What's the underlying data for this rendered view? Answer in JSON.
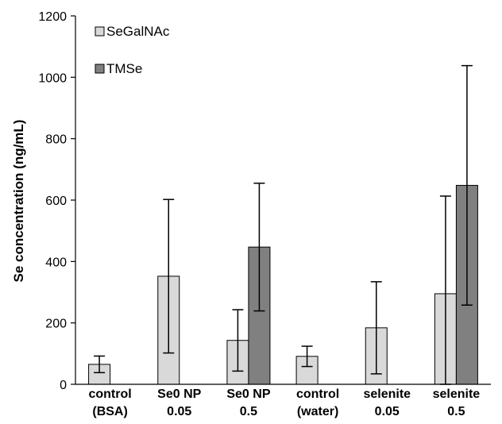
{
  "chart_data": {
    "type": "bar",
    "title": "",
    "xlabel": "",
    "ylabel": "Se concentration (ng/mL)",
    "ylim": [
      0,
      1200
    ],
    "yticks": [
      0,
      200,
      400,
      600,
      800,
      1000,
      1200
    ],
    "grid": false,
    "legend_position": "top-left",
    "categories": [
      [
        "control",
        "(BSA)"
      ],
      [
        "Se0 NP",
        "0.05"
      ],
      [
        "Se0 NP",
        "0.5"
      ],
      [
        "control",
        "(water)"
      ],
      [
        "selenite",
        "0.05"
      ],
      [
        "selenite",
        "0.5"
      ]
    ],
    "series": [
      {
        "name": "SeGalNAc",
        "color": "#d9d9d9",
        "values": [
          65,
          352,
          143,
          91,
          184,
          295
        ],
        "error": [
          27,
          250,
          100,
          33,
          150,
          318
        ]
      },
      {
        "name": "TMSe",
        "color": "#808080",
        "values": [
          null,
          null,
          447,
          null,
          null,
          648
        ],
        "error": [
          null,
          null,
          208,
          null,
          null,
          390
        ]
      }
    ]
  }
}
